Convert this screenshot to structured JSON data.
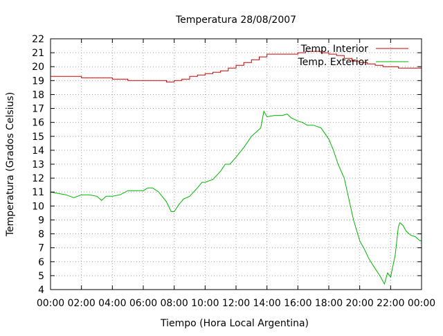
{
  "chart_data": {
    "type": "line",
    "title": "Temperatura 28/08/2007",
    "xlabel": "Tiempo (Hora Local Argentina)",
    "ylabel": "Temperatura (Grados Celsius)",
    "xlim": [
      0,
      24
    ],
    "ylim": [
      4,
      22
    ],
    "x_ticks": [
      {
        "value": 0,
        "label": "00:00"
      },
      {
        "value": 2,
        "label": "02:00"
      },
      {
        "value": 4,
        "label": "04:00"
      },
      {
        "value": 6,
        "label": "06:00"
      },
      {
        "value": 8,
        "label": "08:00"
      },
      {
        "value": 10,
        "label": "10:00"
      },
      {
        "value": 12,
        "label": "12:00"
      },
      {
        "value": 14,
        "label": "14:00"
      },
      {
        "value": 16,
        "label": "16:00"
      },
      {
        "value": 18,
        "label": "18:00"
      },
      {
        "value": 20,
        "label": "20:00"
      },
      {
        "value": 22,
        "label": "22:00"
      },
      {
        "value": 24,
        "label": "00:00"
      }
    ],
    "y_ticks": [
      "4",
      "5",
      "6",
      "7",
      "8",
      "9",
      "10",
      "11",
      "12",
      "13",
      "14",
      "15",
      "16",
      "17",
      "18",
      "19",
      "20",
      "21",
      "22"
    ],
    "grid": true,
    "legend_position": "top-right",
    "series": [
      {
        "name": "Temp. Interior",
        "color": "#cc0000",
        "step": true,
        "x": [
          0,
          1,
          2,
          3,
          4,
          5,
          6,
          7,
          7.5,
          8,
          8.5,
          9,
          9.5,
          10,
          10.5,
          11,
          11.5,
          12,
          12.5,
          13,
          13.5,
          14,
          15,
          16,
          16.5,
          17,
          17.5,
          18,
          18.5,
          19,
          19.5,
          20,
          20.5,
          21,
          21.5,
          22,
          22.5,
          23,
          24
        ],
        "y": [
          19.3,
          19.3,
          19.2,
          19.2,
          19.1,
          19.0,
          19.0,
          19.0,
          18.9,
          19.0,
          19.1,
          19.3,
          19.4,
          19.5,
          19.6,
          19.7,
          19.9,
          20.1,
          20.3,
          20.5,
          20.7,
          20.9,
          20.9,
          21.0,
          21.1,
          21.1,
          21.0,
          20.9,
          20.8,
          20.6,
          20.4,
          20.3,
          20.2,
          20.1,
          20.0,
          20.0,
          19.9,
          19.9,
          19.9
        ]
      },
      {
        "name": "Temp. Exterior",
        "color": "#00b400",
        "step": false,
        "x": [
          0,
          0.5,
          1,
          1.5,
          2,
          2.5,
          3,
          3.3,
          3.6,
          4,
          4.5,
          5,
          5.5,
          6,
          6.3,
          6.6,
          7,
          7.5,
          7.8,
          8,
          8.3,
          8.6,
          9,
          9.5,
          9.8,
          10,
          10.5,
          11,
          11.3,
          11.6,
          12,
          12.5,
          13,
          13.3,
          13.6,
          13.8,
          14,
          14.5,
          15,
          15.3,
          15.6,
          16,
          16.3,
          16.6,
          17,
          17.5,
          18,
          18.3,
          18.6,
          19,
          19.3,
          19.6,
          20,
          20.3,
          20.6,
          21,
          21.3,
          21.6,
          21.8,
          22,
          22.3,
          22.5,
          22.6,
          22.8,
          23,
          23.3,
          23.6,
          23.9,
          24
        ],
        "y": [
          11.0,
          10.9,
          10.8,
          10.6,
          10.8,
          10.8,
          10.7,
          10.4,
          10.7,
          10.7,
          10.8,
          11.1,
          11.1,
          11.1,
          11.3,
          11.3,
          11.0,
          10.3,
          9.6,
          9.6,
          10.1,
          10.5,
          10.7,
          11.3,
          11.7,
          11.7,
          11.9,
          12.5,
          13.0,
          13.0,
          13.5,
          14.2,
          15.0,
          15.3,
          15.6,
          16.8,
          16.4,
          16.5,
          16.5,
          16.6,
          16.3,
          16.1,
          16.0,
          15.8,
          15.8,
          15.6,
          14.8,
          14.0,
          13.0,
          12.0,
          10.5,
          9.0,
          7.5,
          6.9,
          6.2,
          5.5,
          5.0,
          4.4,
          5.2,
          4.9,
          6.5,
          8.5,
          8.8,
          8.6,
          8.2,
          7.9,
          7.8,
          7.5,
          7.5
        ]
      }
    ]
  }
}
